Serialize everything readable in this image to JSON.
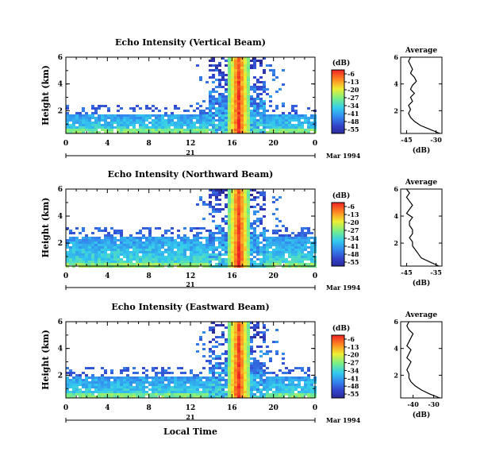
{
  "chart_data": [
    {
      "type": "heatmap",
      "title": "Echo Intensity (Vertical Beam)",
      "ylabel": "Height (km)",
      "y_ticks": [
        "2",
        "4",
        "6"
      ],
      "ylim": [
        0.3,
        6.0
      ],
      "x_ticks": [
        "0",
        "4",
        "8",
        "12",
        "16",
        "20",
        "0"
      ],
      "xlim": [
        0,
        24
      ],
      "date_day": "21",
      "date_label": "Mar 1994",
      "colorbar": {
        "unit": "(dB)",
        "ticks": [
          "-6",
          "-13",
          "-20",
          "-27",
          "-34",
          "-41",
          "-48",
          "-55"
        ],
        "range": [
          -55,
          -6
        ]
      },
      "profile": {
        "title": "Average",
        "xlabel": "(dB)",
        "x_ticks": [
          "-45",
          "-30"
        ],
        "xlim": [
          -48,
          -27
        ],
        "y_ticks": [
          "2",
          "4",
          "6"
        ],
        "ylim": [
          0.3,
          6.0
        ],
        "heights": [
          0.3,
          0.6,
          0.9,
          1.2,
          1.5,
          1.8,
          2.1,
          2.4,
          2.7,
          3.0,
          3.3,
          3.6,
          3.9,
          4.2,
          4.5,
          4.8,
          5.1,
          5.4,
          5.7,
          6.0
        ],
        "values": [
          -28,
          -33,
          -38,
          -41,
          -43,
          -44,
          -43,
          -44,
          -42,
          -43,
          -41,
          -43,
          -42,
          -40,
          -41,
          -43,
          -42,
          -43,
          -44,
          -43
        ]
      }
    },
    {
      "type": "heatmap",
      "title": "Echo Intensity (Northward Beam)",
      "ylabel": "Height (km)",
      "y_ticks": [
        "2",
        "4",
        "6"
      ],
      "ylim": [
        0.3,
        6.0
      ],
      "x_ticks": [
        "0",
        "4",
        "8",
        "12",
        "16",
        "20",
        "0"
      ],
      "xlim": [
        0,
        24
      ],
      "date_day": "21",
      "date_label": "Mar 1994",
      "colorbar": {
        "unit": "(dB)",
        "ticks": [
          "-6",
          "-13",
          "-20",
          "-27",
          "-34",
          "-41",
          "-48",
          "-55"
        ],
        "range": [
          -55,
          -6
        ]
      },
      "profile": {
        "title": "Average",
        "xlabel": "(dB)",
        "x_ticks": [
          "-45",
          "-35"
        ],
        "xlim": [
          -47,
          -33
        ],
        "y_ticks": [
          "2",
          "4",
          "6"
        ],
        "ylim": [
          0.3,
          6.0
        ],
        "heights": [
          0.3,
          0.6,
          0.9,
          1.2,
          1.5,
          1.8,
          2.1,
          2.4,
          2.7,
          3.0,
          3.3,
          3.6,
          3.9,
          4.2,
          4.5,
          4.8,
          5.1,
          5.4,
          5.7,
          6.0
        ],
        "values": [
          -34,
          -37,
          -40,
          -41,
          -42,
          -43,
          -43,
          -44,
          -43,
          -43,
          -44,
          -44,
          -43,
          -45,
          -44,
          -43,
          -44,
          -45,
          -44,
          -45
        ]
      }
    },
    {
      "type": "heatmap",
      "title": "Echo Intensity (Eastward Beam)",
      "ylabel": "Height (km)",
      "y_ticks": [
        "2",
        "4",
        "6"
      ],
      "ylim": [
        0.3,
        6.0
      ],
      "x_ticks": [
        "0",
        "4",
        "8",
        "12",
        "16",
        "20",
        "0"
      ],
      "xlim": [
        0,
        24
      ],
      "date_day": "21",
      "date_label": "Mar 1994",
      "xlabel": "Local Time",
      "colorbar": {
        "unit": "(dB)",
        "ticks": [
          "-6",
          "-13",
          "-20",
          "-27",
          "-34",
          "-41",
          "-48",
          "-55"
        ],
        "range": [
          -55,
          -6
        ]
      },
      "profile": {
        "title": "Average",
        "xlabel": "(dB)",
        "x_ticks": [
          "-40",
          "-30"
        ],
        "xlim": [
          -46,
          -26
        ],
        "y_ticks": [
          "2",
          "4",
          "6"
        ],
        "ylim": [
          0.3,
          6.0
        ],
        "heights": [
          0.3,
          0.6,
          0.9,
          1.2,
          1.5,
          1.8,
          2.1,
          2.4,
          2.7,
          3.0,
          3.3,
          3.6,
          3.9,
          4.2,
          4.5,
          4.8,
          5.1,
          5.4,
          5.7,
          6.0
        ],
        "values": [
          -27,
          -32,
          -36,
          -39,
          -41,
          -42,
          -42,
          -43,
          -42,
          -41,
          -43,
          -42,
          -41,
          -43,
          -42,
          -41,
          -40,
          -42,
          -43,
          -42
        ]
      }
    }
  ]
}
